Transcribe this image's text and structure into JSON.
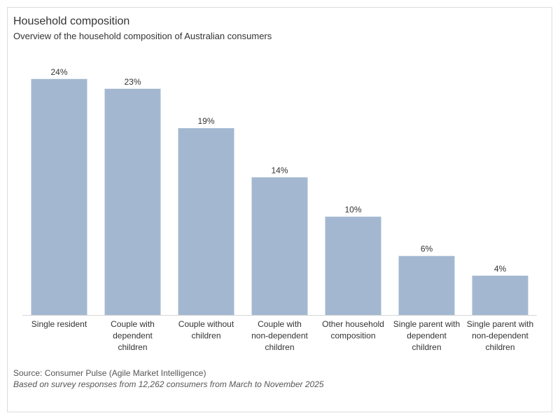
{
  "chart_data": {
    "type": "bar",
    "title": "Household composition",
    "subtitle": "Overview of the household composition of Australian consumers",
    "categories": [
      [
        "Single resident"
      ],
      [
        "Couple with",
        "dependent",
        "children"
      ],
      [
        "Couple without",
        "children"
      ],
      [
        "Couple with",
        "non-dependent",
        "children"
      ],
      [
        "Other household",
        "composition"
      ],
      [
        "Single parent with",
        "dependent",
        "children"
      ],
      [
        "Single parent with",
        "non-dependent",
        "children"
      ]
    ],
    "values": [
      24,
      23,
      19,
      14,
      10,
      6,
      4
    ],
    "value_suffix": "%",
    "ylim": [
      0,
      25
    ],
    "grid": false,
    "bar_color": "#a3b8d0",
    "source": "Source: Consumer Pulse (Agile Market Intelligence)",
    "note": "Based on survey responses from 12,262 consumers from March to November 2025"
  }
}
